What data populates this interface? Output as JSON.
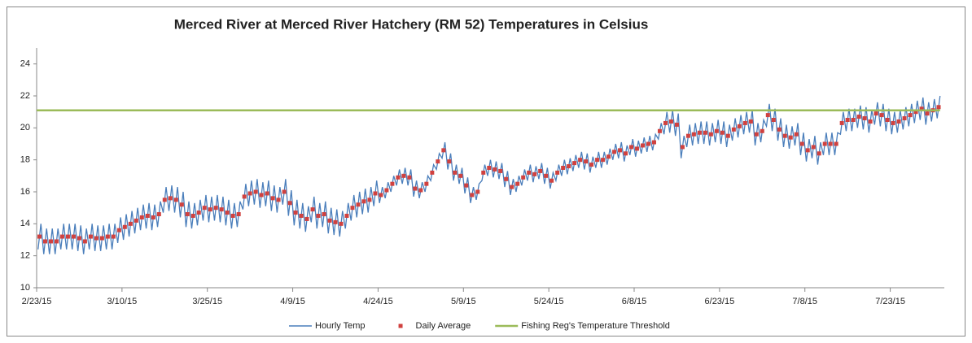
{
  "chart_data": {
    "type": "line",
    "title": "Merced River at Merced River Hatchery (RM 52) Temperatures in Celsius",
    "xlim": [
      0,
      159.5
    ],
    "xticks": [
      {
        "value": 0,
        "label": "2/23/15"
      },
      {
        "value": 15,
        "label": "3/10/15"
      },
      {
        "value": 30,
        "label": "3/25/15"
      },
      {
        "value": 45,
        "label": "4/9/15"
      },
      {
        "value": 60,
        "label": "4/24/15"
      },
      {
        "value": 75,
        "label": "5/9/15"
      },
      {
        "value": 90,
        "label": "5/24/15"
      },
      {
        "value": 105,
        "label": "6/8/15"
      },
      {
        "value": 120,
        "label": "6/23/15"
      },
      {
        "value": 135,
        "label": "7/8/15"
      },
      {
        "value": 150,
        "label": "7/23/15"
      }
    ],
    "ylim": [
      10,
      25
    ],
    "yticks": [
      10,
      12,
      14,
      16,
      18,
      20,
      22,
      24
    ],
    "grid": false,
    "legend": "bottom",
    "series": [
      {
        "name": "Hourly Temp",
        "color": "#4a7ebb",
        "mark": "line",
        "x": [
          0.25,
          0.75,
          1.25,
          1.75,
          2.25,
          2.75,
          3.25,
          3.75,
          4.25,
          4.75,
          5.25,
          5.75,
          6.25,
          6.75,
          7.25,
          7.75,
          8.25,
          8.75,
          9.25,
          9.75,
          10.25,
          10.75,
          11.25,
          11.75,
          12.25,
          12.75,
          13.25,
          13.75,
          14.25,
          14.75,
          15.25,
          15.75,
          16.25,
          16.75,
          17.25,
          17.75,
          18.25,
          18.75,
          19.25,
          19.75,
          20.25,
          20.75,
          21.25,
          21.75,
          22.25,
          22.75,
          23.25,
          23.75,
          24.25,
          24.75,
          25.25,
          25.75,
          26.25,
          26.75,
          27.25,
          27.75,
          28.25,
          28.75,
          29.25,
          29.75,
          30.25,
          30.75,
          31.25,
          31.75,
          32.25,
          32.75,
          33.25,
          33.75,
          34.25,
          34.75,
          35.25,
          35.75,
          36.25,
          36.75,
          37.25,
          37.75,
          38.25,
          38.75,
          39.25,
          39.75,
          40.25,
          40.75,
          41.25,
          41.75,
          42.25,
          42.75,
          43.25,
          43.75,
          44.25,
          44.75,
          45.25,
          45.75,
          46.25,
          46.75,
          47.25,
          47.75,
          48.25,
          48.75,
          49.25,
          49.75,
          50.25,
          50.75,
          51.25,
          51.75,
          52.25,
          52.75,
          53.25,
          53.75,
          54.25,
          54.75,
          55.25,
          55.75,
          56.25,
          56.75,
          57.25,
          57.75,
          58.25,
          58.75,
          59.25,
          59.75,
          60.25,
          60.75,
          61.25,
          61.75,
          62.25,
          62.75,
          63.25,
          63.75,
          64.25,
          64.75,
          65.25,
          65.75,
          66.25,
          66.75,
          67.25,
          67.75,
          68.25,
          68.75,
          69.25,
          69.75,
          70.25,
          70.75,
          71.25,
          71.75,
          72.25,
          72.75,
          73.25,
          73.75,
          74.25,
          74.75,
          75.25,
          75.75,
          76.25,
          76.75,
          77.25,
          77.75,
          78.25,
          78.75,
          79.25,
          79.75,
          80.25,
          80.75,
          81.25,
          81.75,
          82.25,
          82.75,
          83.25,
          83.75,
          84.25,
          84.75,
          85.25,
          85.75,
          86.25,
          86.75,
          87.25,
          87.75,
          88.25,
          88.75,
          89.25,
          89.75,
          90.25,
          90.75,
          91.25,
          91.75,
          92.25,
          92.75,
          93.25,
          93.75,
          94.25,
          94.75,
          95.25,
          95.75,
          96.25,
          96.75,
          97.25,
          97.75,
          98.25,
          98.75,
          99.25,
          99.75,
          100.25,
          100.75,
          101.25,
          101.75,
          102.25,
          102.75,
          103.25,
          103.75,
          104.25,
          104.75,
          105.25,
          105.75,
          106.25,
          106.75,
          107.25,
          107.75,
          108.25,
          108.75,
          109.25,
          109.75,
          110.25,
          110.75,
          111.25,
          111.75,
          112.25,
          112.75,
          113.25,
          113.75,
          114.25,
          114.75,
          115.25,
          115.75,
          116.25,
          116.75,
          117.25,
          117.75,
          118.25,
          118.75,
          119.25,
          119.75,
          120.25,
          120.75,
          121.25,
          121.75,
          122.25,
          122.75,
          123.25,
          123.75,
          124.25,
          124.75,
          125.25,
          125.75,
          126.25,
          126.75,
          127.25,
          127.75,
          128.25,
          128.75,
          129.25,
          129.75,
          130.25,
          130.75,
          131.25,
          131.75,
          132.25,
          132.75,
          133.25,
          133.75,
          134.25,
          134.75,
          135.25,
          135.75,
          136.25,
          136.75,
          137.25,
          137.75,
          138.25,
          138.75,
          139.25,
          139.75,
          140.25,
          140.75,
          141.25,
          141.75,
          142.25,
          142.75,
          143.25,
          143.75,
          144.25,
          144.75,
          145.25,
          145.75,
          146.25,
          146.75,
          147.25,
          147.75,
          148.25,
          148.75,
          149.25,
          149.75,
          150.25,
          150.75,
          151.25,
          151.75,
          152.25,
          152.75,
          153.25,
          153.75,
          154.25,
          154.75,
          155.25,
          155.75,
          156.25,
          156.75,
          157.25,
          157.75,
          158.25,
          158.75
        ],
        "values": [
          12.4,
          14.0,
          12.1,
          13.7,
          12.1,
          13.7,
          12.1,
          13.7,
          12.4,
          14.0,
          12.4,
          14.0,
          12.4,
          14.0,
          12.3,
          13.9,
          12.1,
          13.7,
          12.4,
          14.0,
          12.3,
          13.9,
          12.3,
          13.9,
          12.4,
          14.0,
          12.4,
          14.0,
          12.8,
          14.4,
          13.0,
          14.6,
          13.2,
          14.8,
          13.4,
          15.0,
          13.6,
          15.2,
          13.7,
          15.3,
          13.6,
          15.2,
          13.8,
          15.4,
          14.7,
          16.3,
          14.8,
          16.4,
          14.7,
          16.3,
          14.4,
          16.0,
          13.8,
          15.4,
          13.7,
          15.3,
          13.9,
          15.5,
          14.2,
          15.8,
          14.1,
          15.7,
          14.2,
          15.8,
          14.1,
          15.7,
          13.9,
          15.5,
          13.7,
          15.3,
          13.8,
          15.4,
          14.9,
          16.5,
          15.1,
          16.7,
          15.2,
          16.8,
          15.0,
          16.6,
          15.1,
          16.7,
          14.8,
          16.4,
          14.7,
          16.3,
          15.2,
          16.8,
          14.5,
          16.1,
          13.9,
          15.5,
          13.7,
          15.3,
          13.5,
          15.1,
          14.1,
          15.7,
          13.7,
          15.3,
          13.8,
          15.4,
          13.4,
          15.0,
          13.3,
          14.9,
          13.2,
          14.8,
          13.7,
          15.3,
          14.2,
          15.8,
          14.4,
          16.0,
          14.6,
          16.2,
          14.7,
          16.3,
          15.1,
          16.7,
          15.3,
          16.3,
          15.6,
          16.6,
          16.0,
          17.0,
          16.4,
          17.4,
          16.5,
          17.5,
          16.4,
          17.4,
          15.7,
          16.7,
          15.6,
          16.6,
          16.0,
          17.0,
          16.7,
          17.7,
          17.4,
          18.4,
          18.1,
          19.1,
          17.4,
          18.4,
          16.7,
          17.7,
          16.5,
          17.5,
          15.9,
          16.9,
          15.3,
          16.3,
          15.5,
          16.5,
          16.7,
          17.7,
          17.0,
          18.0,
          16.9,
          17.9,
          16.8,
          17.8,
          16.3,
          17.3,
          15.8,
          16.8,
          16.0,
          17.0,
          16.4,
          17.4,
          16.7,
          17.7,
          16.6,
          17.6,
          16.8,
          17.8,
          16.5,
          17.5,
          16.2,
          17.2,
          16.7,
          17.7,
          17.0,
          18.0,
          17.1,
          18.1,
          17.3,
          18.3,
          17.5,
          18.5,
          17.4,
          18.4,
          17.2,
          18.2,
          17.5,
          18.5,
          17.5,
          18.5,
          17.7,
          18.7,
          18.0,
          19.0,
          18.1,
          19.1,
          17.9,
          18.9,
          18.3,
          19.3,
          18.2,
          19.2,
          18.4,
          19.4,
          18.5,
          19.5,
          18.6,
          19.6,
          19.3,
          20.3,
          19.6,
          21.0,
          19.7,
          21.1,
          19.5,
          20.9,
          18.1,
          19.5,
          18.8,
          20.2,
          18.9,
          20.3,
          19.0,
          20.4,
          19.0,
          20.4,
          18.9,
          20.3,
          19.1,
          20.5,
          19.0,
          20.4,
          18.8,
          20.2,
          19.2,
          20.6,
          19.4,
          20.8,
          19.6,
          21.0,
          19.7,
          21.1,
          18.9,
          20.3,
          19.1,
          20.5,
          20.1,
          21.5,
          19.8,
          21.2,
          19.2,
          20.6,
          18.8,
          20.2,
          18.7,
          20.1,
          18.9,
          20.3,
          18.3,
          19.7,
          17.9,
          19.3,
          18.1,
          19.5,
          17.7,
          19.1,
          18.3,
          19.7,
          18.3,
          19.7,
          18.3,
          19.7,
          19.6,
          21.0,
          19.8,
          21.2,
          19.8,
          21.2,
          20.0,
          21.4,
          19.9,
          21.3,
          19.7,
          21.1,
          20.2,
          21.6,
          20.1,
          21.5,
          19.8,
          21.2,
          19.6,
          21.0,
          19.7,
          21.1,
          19.9,
          21.3,
          20.1,
          21.5,
          20.3,
          21.7,
          20.5,
          21.9,
          20.2,
          21.6,
          20.4,
          21.8,
          20.6,
          22.0
        ]
      },
      {
        "name": "Daily Average",
        "color": "#d0413f",
        "mark": "square",
        "x": [
          0.5,
          1.5,
          2.5,
          3.5,
          4.5,
          5.5,
          6.5,
          7.5,
          8.5,
          9.5,
          10.5,
          11.5,
          12.5,
          13.5,
          14.5,
          15.5,
          16.5,
          17.5,
          18.5,
          19.5,
          20.5,
          21.5,
          22.5,
          23.5,
          24.5,
          25.5,
          26.5,
          27.5,
          28.5,
          29.5,
          30.5,
          31.5,
          32.5,
          33.5,
          34.5,
          35.5,
          36.5,
          37.5,
          38.5,
          39.5,
          40.5,
          41.5,
          42.5,
          43.5,
          44.5,
          45.5,
          46.5,
          47.5,
          48.5,
          49.5,
          50.5,
          51.5,
          52.5,
          53.5,
          54.5,
          55.5,
          56.5,
          57.5,
          58.5,
          59.5,
          60.5,
          61.5,
          62.5,
          63.5,
          64.5,
          65.5,
          66.5,
          67.5,
          68.5,
          69.5,
          70.5,
          71.5,
          72.5,
          73.5,
          74.5,
          75.5,
          76.5,
          77.5,
          78.5,
          79.5,
          80.5,
          81.5,
          82.5,
          83.5,
          84.5,
          85.5,
          86.5,
          87.5,
          88.5,
          89.5,
          90.5,
          91.5,
          92.5,
          93.5,
          94.5,
          95.5,
          96.5,
          97.5,
          98.5,
          99.5,
          100.5,
          101.5,
          102.5,
          103.5,
          104.5,
          105.5,
          106.5,
          107.5,
          108.5,
          109.5,
          110.5,
          111.5,
          112.5,
          113.5,
          114.5,
          115.5,
          116.5,
          117.5,
          118.5,
          119.5,
          120.5,
          121.5,
          122.5,
          123.5,
          124.5,
          125.5,
          126.5,
          127.5,
          128.5,
          129.5,
          130.5,
          131.5,
          132.5,
          133.5,
          134.5,
          135.5,
          136.5,
          137.5,
          138.5,
          139.5,
          140.5,
          141.5,
          142.5,
          143.5,
          144.5,
          145.5,
          146.5,
          147.5,
          148.5,
          149.5,
          150.5,
          151.5,
          152.5,
          153.5,
          154.5,
          155.5,
          156.5,
          157.5,
          158.5
        ],
        "values": [
          13.2,
          12.9,
          12.9,
          12.9,
          13.2,
          13.2,
          13.2,
          13.1,
          12.9,
          13.2,
          13.1,
          13.1,
          13.2,
          13.2,
          13.6,
          13.8,
          14.0,
          14.2,
          14.4,
          14.5,
          14.4,
          14.6,
          15.5,
          15.6,
          15.5,
          15.2,
          14.6,
          14.5,
          14.7,
          15.0,
          14.9,
          15.0,
          14.9,
          14.7,
          14.5,
          14.6,
          15.7,
          15.9,
          16.0,
          15.8,
          15.9,
          15.6,
          15.5,
          16.0,
          15.3,
          14.7,
          14.5,
          14.3,
          14.9,
          14.5,
          14.6,
          14.2,
          14.1,
          14.0,
          14.5,
          15.0,
          15.2,
          15.4,
          15.5,
          15.9,
          15.8,
          16.1,
          16.5,
          16.9,
          17.0,
          16.9,
          16.2,
          16.1,
          16.5,
          17.2,
          17.9,
          18.6,
          17.9,
          17.2,
          17.0,
          16.4,
          15.8,
          16.0,
          17.2,
          17.5,
          17.4,
          17.3,
          16.8,
          16.3,
          16.5,
          16.9,
          17.2,
          17.1,
          17.3,
          17.0,
          16.7,
          17.2,
          17.5,
          17.6,
          17.8,
          18.0,
          17.9,
          17.7,
          18.0,
          18.0,
          18.2,
          18.5,
          18.6,
          18.4,
          18.8,
          18.7,
          18.9,
          19.0,
          19.1,
          19.8,
          20.3,
          20.4,
          20.2,
          18.8,
          19.5,
          19.6,
          19.7,
          19.7,
          19.6,
          19.8,
          19.7,
          19.5,
          19.9,
          20.1,
          20.3,
          20.4,
          19.6,
          19.8,
          20.8,
          20.5,
          19.9,
          19.5,
          19.4,
          19.6,
          19.0,
          18.6,
          18.8,
          18.4,
          19.0,
          19.0,
          19.0,
          20.3,
          20.5,
          20.5,
          20.7,
          20.6,
          20.4,
          20.9,
          20.8,
          20.5,
          20.3,
          20.4,
          20.6,
          20.8,
          21.0,
          21.2,
          20.9,
          21.1,
          21.3
        ]
      },
      {
        "name": "Fishing Reg's Temperature Threshold",
        "color": "#9bbb59",
        "mark": "line",
        "x": [
          0,
          158.75
        ],
        "values": [
          21.1,
          21.1
        ]
      }
    ]
  }
}
